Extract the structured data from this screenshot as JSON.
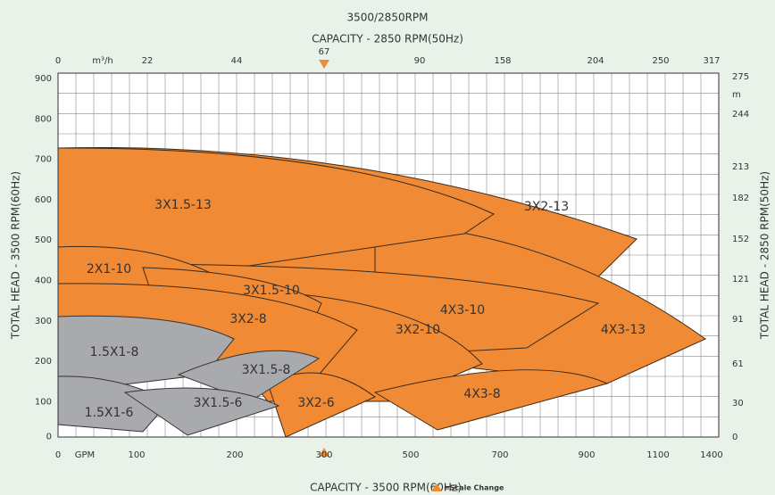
{
  "title": "3500/2850RPM",
  "top_axis": {
    "label": "CAPACITY - 2850 RPM(50Hz)",
    "ticks": [
      "0",
      "m³/h",
      "22",
      "44",
      "67",
      "90",
      "158",
      "204",
      "250",
      "317"
    ]
  },
  "bottom_axis": {
    "label": "CAPACITY - 3500 RPM(60Hz)",
    "ticks": [
      "0",
      "GPM",
      "100",
      "200",
      "300",
      "500",
      "700",
      "900",
      "1100",
      "1400"
    ]
  },
  "left_axis": {
    "label": "TOTAL HEAD - 3500 RPM(60Hz)",
    "ticks": [
      "900",
      "800",
      "700",
      "600",
      "500",
      "400",
      "300",
      "200",
      "100",
      "0"
    ]
  },
  "right_axis": {
    "label": "TOTAL HEAD - 2850 RPM(50Hz)",
    "ticks": [
      "275",
      "m",
      "244",
      "213",
      "182",
      "152",
      "121",
      "91",
      "61",
      "30",
      "0"
    ]
  },
  "legend": "=Scale Change",
  "regions": [
    "3X2-13",
    "4X3-13",
    "3X1.5-13",
    "4X3-10",
    "3X2-10",
    "4X3-8",
    "2X1-10",
    "3X1.5-10",
    "3X2-8",
    "3X2-6",
    "1.5X1-8",
    "3X1.5-8",
    "1.5X1-6",
    "3X1.5-6"
  ]
}
